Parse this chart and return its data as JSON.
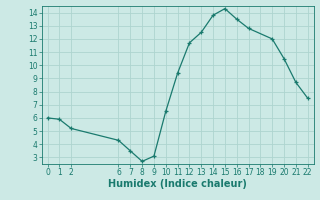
{
  "x": [
    0,
    1,
    2,
    6,
    7,
    8,
    9,
    10,
    11,
    12,
    13,
    14,
    15,
    16,
    17,
    19,
    20,
    21,
    22
  ],
  "y": [
    6.0,
    5.9,
    5.2,
    4.3,
    3.5,
    2.7,
    3.1,
    6.5,
    9.4,
    11.7,
    12.5,
    13.8,
    14.3,
    13.5,
    12.8,
    12.0,
    10.5,
    8.7,
    7.5
  ],
  "line_color": "#1a7a6e",
  "marker_color": "#1a7a6e",
  "bg_color": "#cce9e5",
  "grid_color": "#aed4cf",
  "xlabel": "Humidex (Indice chaleur)",
  "xlabel_fontsize": 7,
  "ylim": [
    2.5,
    14.5
  ],
  "xlim": [
    -0.5,
    22.5
  ],
  "yticks": [
    3,
    4,
    5,
    6,
    7,
    8,
    9,
    10,
    11,
    12,
    13,
    14
  ],
  "xticks": [
    0,
    1,
    2,
    6,
    7,
    8,
    9,
    10,
    11,
    12,
    13,
    14,
    15,
    16,
    17,
    18,
    19,
    20,
    21,
    22
  ],
  "tick_fontsize": 5.5
}
